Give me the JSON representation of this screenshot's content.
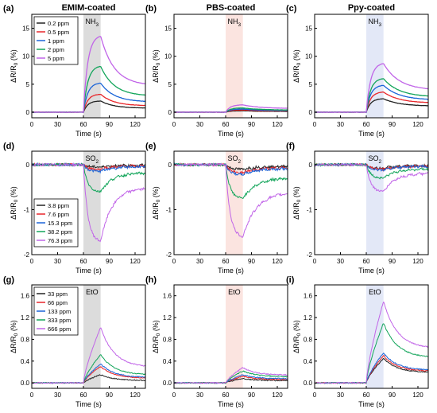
{
  "figure": {
    "columns": [
      "EMIM-coated",
      "PBS-coated",
      "Ppy-coated"
    ],
    "row_labels": [
      [
        "(a)",
        "(b)",
        "(c)"
      ],
      [
        "(d)",
        "(e)",
        "(f)"
      ],
      [
        "(g)",
        "(h)",
        "(i)"
      ]
    ],
    "gas_labels": [
      {
        "main": "NH",
        "sub": "3"
      },
      {
        "main": "SO",
        "sub": "2"
      },
      {
        "main": "EtO",
        "sub": ""
      }
    ],
    "xlabel": "Time (s)",
    "ylabel": {
      "delta": "ΔR/R",
      "sub": "0",
      "unit": " (%)"
    },
    "x_ticks": [
      "0",
      "30",
      "60",
      "90",
      "120"
    ],
    "y_ticks": [
      [
        "0",
        "5",
        "10",
        "15"
      ],
      [
        "-2",
        "-1",
        "0"
      ],
      [
        "0.0",
        "0.4",
        "0.8",
        "1.2",
        "1.6"
      ]
    ],
    "legends": [
      [
        "0.2 ppm",
        "0.5 ppm",
        "1 ppm",
        "2 ppm",
        "5 ppm"
      ],
      [
        "3.8 ppm",
        "7.6 ppm",
        "15.3 ppm",
        "38.2 ppm",
        "76.3 ppm"
      ],
      [
        "33 ppm",
        "66 ppm",
        "133 ppm",
        "333 ppm",
        "666 ppm"
      ]
    ],
    "series_colors": [
      "#222222",
      "#e8262a",
      "#1a64d8",
      "#12a55a",
      "#c165e8"
    ],
    "shade_colors": [
      "#dcdcdc",
      "#fbe4e0",
      "#e3e8f7"
    ]
  },
  "chart_data": [
    {
      "panel": "(a)",
      "type": "line",
      "title": "EMIM-coated",
      "xlim": [
        0,
        132
      ],
      "ylim": [
        -1,
        17.5
      ],
      "exposure_window": [
        60,
        80
      ],
      "series": [
        {
          "name": "0.2 ppm",
          "peak": 2.0
        },
        {
          "name": "0.5 ppm",
          "peak": 3.2
        },
        {
          "name": "1 ppm",
          "peak": 5.2
        },
        {
          "name": "2 ppm",
          "peak": 8.2
        },
        {
          "name": "5 ppm",
          "peak": 13.6
        }
      ]
    },
    {
      "panel": "(b)",
      "type": "line",
      "title": "PBS-coated",
      "xlim": [
        0,
        132
      ],
      "ylim": [
        -1,
        17.5
      ],
      "exposure_window": [
        60,
        80
      ],
      "series": [
        {
          "name": "0.2 ppm",
          "peak": 0.25
        },
        {
          "name": "0.5 ppm",
          "peak": 0.4
        },
        {
          "name": "1 ppm",
          "peak": 0.55
        },
        {
          "name": "2 ppm",
          "peak": 0.75
        },
        {
          "name": "5 ppm",
          "peak": 1.3
        }
      ]
    },
    {
      "panel": "(c)",
      "type": "line",
      "title": "Ppy-coated",
      "xlim": [
        0,
        132
      ],
      "ylim": [
        -1,
        17.5
      ],
      "exposure_window": [
        60,
        80
      ],
      "series": [
        {
          "name": "0.2 ppm",
          "peak": 2.4
        },
        {
          "name": "0.5 ppm",
          "peak": 3.6
        },
        {
          "name": "1 ppm",
          "peak": 4.8
        },
        {
          "name": "2 ppm",
          "peak": 6.0
        },
        {
          "name": "5 ppm",
          "peak": 8.7
        }
      ]
    },
    {
      "panel": "(d)",
      "type": "line",
      "xlim": [
        0,
        132
      ],
      "ylim": [
        -2,
        0.3
      ],
      "exposure_window": [
        60,
        80
      ],
      "series": [
        {
          "name": "3.8 ppm",
          "peak": -0.05
        },
        {
          "name": "7.6 ppm",
          "peak": -0.1
        },
        {
          "name": "15.3 ppm",
          "peak": -0.15
        },
        {
          "name": "38.2 ppm",
          "peak": -0.6
        },
        {
          "name": "76.3 ppm",
          "peak": -1.7
        }
      ]
    },
    {
      "panel": "(e)",
      "type": "line",
      "xlim": [
        0,
        132
      ],
      "ylim": [
        -2,
        0.3
      ],
      "exposure_window": [
        60,
        80
      ],
      "series": [
        {
          "name": "3.8 ppm",
          "peak": -0.1
        },
        {
          "name": "7.6 ppm",
          "peak": -0.18
        },
        {
          "name": "15.3 ppm",
          "peak": -0.22
        },
        {
          "name": "38.2 ppm",
          "peak": -0.75
        },
        {
          "name": "76.3 ppm",
          "peak": -1.6
        }
      ]
    },
    {
      "panel": "(f)",
      "type": "line",
      "xlim": [
        0,
        132
      ],
      "ylim": [
        -2,
        0.3
      ],
      "exposure_window": [
        60,
        80
      ],
      "series": [
        {
          "name": "3.8 ppm",
          "peak": -0.08
        },
        {
          "name": "7.6 ppm",
          "peak": -0.1
        },
        {
          "name": "15.3 ppm",
          "peak": -0.12
        },
        {
          "name": "38.2 ppm",
          "peak": -0.3
        },
        {
          "name": "76.3 ppm",
          "peak": -0.6
        }
      ]
    },
    {
      "panel": "(g)",
      "type": "line",
      "xlim": [
        0,
        132
      ],
      "ylim": [
        -0.1,
        1.8
      ],
      "exposure_window": [
        60,
        80
      ],
      "series": [
        {
          "name": "33 ppm",
          "peak": 0.15
        },
        {
          "name": "66 ppm",
          "peak": 0.3
        },
        {
          "name": "133 ppm",
          "peak": 0.35
        },
        {
          "name": "333 ppm",
          "peak": 0.52
        },
        {
          "name": "666 ppm",
          "peak": 1.02
        }
      ]
    },
    {
      "panel": "(h)",
      "type": "line",
      "xlim": [
        0,
        132
      ],
      "ylim": [
        -0.1,
        1.8
      ],
      "exposure_window": [
        60,
        80
      ],
      "series": [
        {
          "name": "33 ppm",
          "peak": 0.08
        },
        {
          "name": "66 ppm",
          "peak": 0.12
        },
        {
          "name": "133 ppm",
          "peak": 0.15
        },
        {
          "name": "333 ppm",
          "peak": 0.22
        },
        {
          "name": "666 ppm",
          "peak": 0.28
        }
      ]
    },
    {
      "panel": "(i)",
      "type": "line",
      "xlim": [
        0,
        132
      ],
      "ylim": [
        -0.1,
        1.8
      ],
      "exposure_window": [
        60,
        80
      ],
      "series": [
        {
          "name": "33 ppm",
          "peak": 0.45
        },
        {
          "name": "66 ppm",
          "peak": 0.5
        },
        {
          "name": "133 ppm",
          "peak": 0.55
        },
        {
          "name": "333 ppm",
          "peak": 1.1
        },
        {
          "name": "666 ppm",
          "peak": 1.5
        }
      ]
    }
  ]
}
